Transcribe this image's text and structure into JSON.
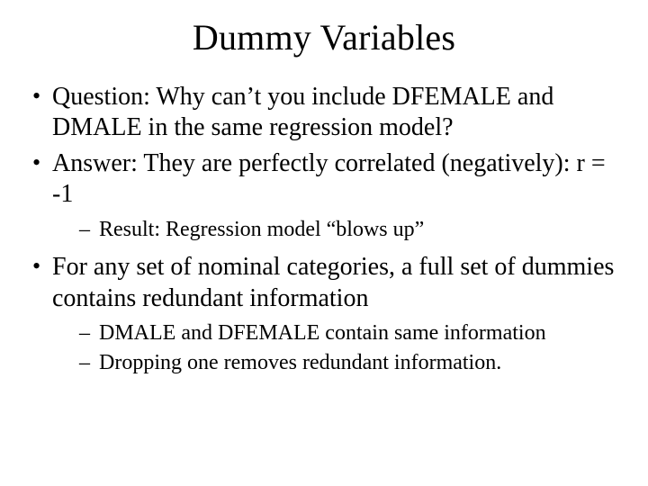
{
  "title": "Dummy Variables",
  "bullets": {
    "b1": "Question:  Why can’t you include DFEMALE and DMALE in the same regression model?",
    "b2": "Answer:  They are perfectly correlated (negatively):  r = -1",
    "b2_sub1": "Result:  Regression model “blows up”",
    "b3": "For any set of nominal categories, a full set of dummies contains redundant information",
    "b3_sub1": "DMALE and DFEMALE contain same information",
    "b3_sub2": "Dropping one removes redundant information."
  },
  "colors": {
    "background": "#ffffff",
    "text": "#000000"
  },
  "typography": {
    "family": "Times New Roman",
    "title_size_pt": 40,
    "body_size_pt": 28,
    "sub_size_pt": 24
  }
}
